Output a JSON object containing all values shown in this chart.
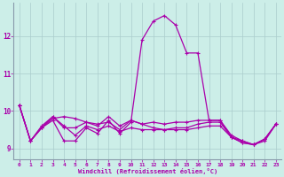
{
  "xlabel": "Windchill (Refroidissement éolien,°C)",
  "background_color": "#cceee8",
  "grid_color": "#aacccc",
  "line_color": "#aa00aa",
  "spine_color": "#8899aa",
  "xlim": [
    -0.5,
    23.5
  ],
  "ylim": [
    8.7,
    12.9
  ],
  "yticks": [
    9,
    10,
    11,
    12
  ],
  "xticks": [
    0,
    1,
    2,
    3,
    4,
    5,
    6,
    7,
    8,
    9,
    10,
    11,
    12,
    13,
    14,
    15,
    16,
    17,
    18,
    19,
    20,
    21,
    22,
    23
  ],
  "series": [
    [
      10.15,
      9.2,
      9.55,
      9.75,
      9.2,
      9.2,
      9.55,
      9.4,
      9.75,
      9.4,
      9.7,
      11.9,
      12.4,
      12.55,
      12.3,
      11.55,
      11.55,
      9.75,
      9.75,
      9.3,
      9.15,
      9.1,
      9.25,
      9.65
    ],
    [
      10.15,
      9.2,
      9.55,
      9.85,
      9.55,
      9.55,
      9.7,
      9.6,
      9.85,
      9.6,
      9.75,
      9.65,
      9.55,
      9.5,
      9.55,
      9.55,
      9.65,
      9.7,
      9.7,
      9.3,
      9.2,
      9.1,
      9.25,
      9.65
    ],
    [
      10.15,
      9.2,
      9.6,
      9.85,
      9.6,
      9.35,
      9.6,
      9.5,
      9.6,
      9.45,
      9.55,
      9.5,
      9.5,
      9.5,
      9.5,
      9.5,
      9.55,
      9.6,
      9.6,
      9.3,
      9.15,
      9.1,
      9.2,
      9.65
    ],
    [
      10.15,
      9.2,
      9.55,
      9.8,
      9.85,
      9.8,
      9.7,
      9.65,
      9.7,
      9.5,
      9.75,
      9.65,
      9.7,
      9.65,
      9.7,
      9.7,
      9.75,
      9.75,
      9.75,
      9.35,
      9.2,
      9.1,
      9.25,
      9.65
    ]
  ]
}
